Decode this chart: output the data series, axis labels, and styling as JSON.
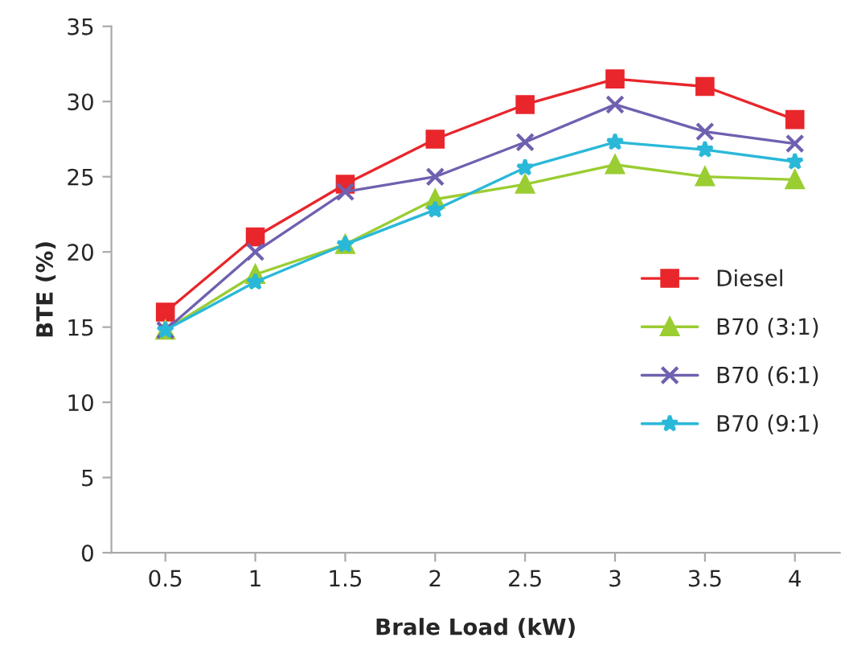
{
  "chart_data": {
    "type": "line",
    "xlabel": "Brale Load (kW)",
    "ylabel": "BTE (%)",
    "categories": [
      "0.5",
      "1",
      "1.5",
      "2",
      "2.5",
      "3",
      "3.5",
      "4"
    ],
    "series": [
      {
        "name": "Diesel",
        "color": "#e8262b",
        "marker": "square",
        "values": [
          16,
          21,
          24.5,
          27.5,
          29.8,
          31.5,
          31,
          28.8
        ]
      },
      {
        "name": "B70 (3:1)",
        "color": "#9acd32",
        "marker": "triangle",
        "values": [
          14.8,
          18.5,
          20.5,
          23.5,
          24.5,
          25.8,
          25,
          24.8
        ]
      },
      {
        "name": "B70 (6:1)",
        "color": "#7060b0",
        "marker": "cross",
        "values": [
          14.8,
          20,
          24,
          25,
          27.3,
          29.8,
          28,
          27.2
        ]
      },
      {
        "name": "B70 (9:1)",
        "color": "#2ab8d8",
        "marker": "star",
        "values": [
          14.8,
          18,
          20.5,
          22.8,
          25.6,
          27.3,
          26.8,
          26
        ]
      }
    ],
    "ylim": [
      0,
      35
    ],
    "yticks": [
      0,
      5,
      10,
      15,
      20,
      25,
      30,
      35
    ],
    "grid": false,
    "legend": "center right",
    "line_style": "solid"
  }
}
